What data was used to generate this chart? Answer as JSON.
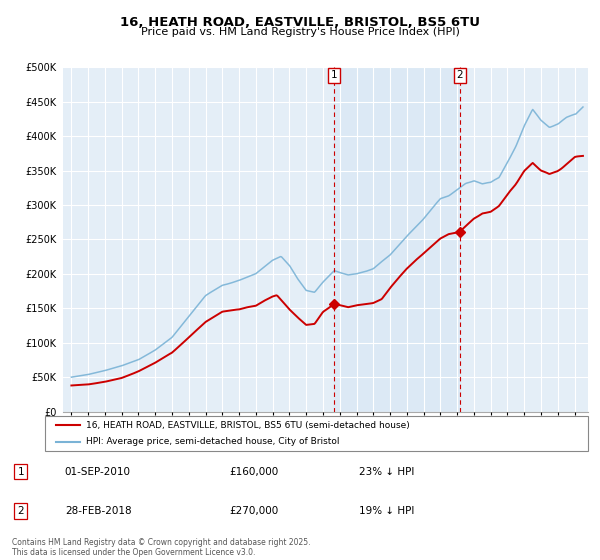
{
  "title": "16, HEATH ROAD, EASTVILLE, BRISTOL, BS5 6TU",
  "subtitle": "Price paid vs. HM Land Registry's House Price Index (HPI)",
  "hpi_color": "#7ab3d6",
  "price_color": "#cc0000",
  "shading_color": "#dce9f5",
  "background_color": "#e4eef7",
  "grid_color": "#ffffff",
  "marker1_date_x": 2010.67,
  "marker1_y": 160000,
  "marker2_date_x": 2018.17,
  "marker2_y": 270000,
  "marker1_label": "01-SEP-2010",
  "marker1_price": "£160,000",
  "marker1_hpi": "23% ↓ HPI",
  "marker2_label": "28-FEB-2018",
  "marker2_price": "£270,000",
  "marker2_hpi": "19% ↓ HPI",
  "legend_line1": "16, HEATH ROAD, EASTVILLE, BRISTOL, BS5 6TU (semi-detached house)",
  "legend_line2": "HPI: Average price, semi-detached house, City of Bristol",
  "footer": "Contains HM Land Registry data © Crown copyright and database right 2025.\nThis data is licensed under the Open Government Licence v3.0.",
  "xlim_start": 1994.5,
  "xlim_end": 2025.8,
  "ylim": [
    0,
    500000
  ],
  "yticks": [
    0,
    50000,
    100000,
    150000,
    200000,
    250000,
    300000,
    350000,
    400000,
    450000,
    500000
  ],
  "ytick_labels": [
    "£0",
    "£50K",
    "£100K",
    "£150K",
    "£200K",
    "£250K",
    "£300K",
    "£350K",
    "£400K",
    "£450K",
    "£500K"
  ]
}
